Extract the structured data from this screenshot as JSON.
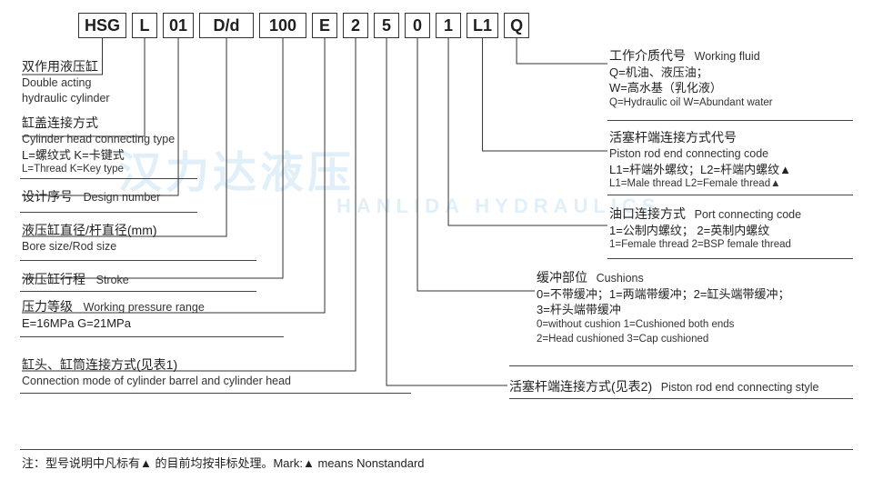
{
  "codes": [
    "HSG",
    "L",
    "01",
    "D/d",
    "100",
    "E",
    "2",
    "5",
    "0",
    "1",
    "L1",
    "Q"
  ],
  "left": [
    {
      "cn": "双作用液压缸",
      "en": "Double acting\nhydraulic cylinder"
    },
    {
      "cn": "缸盖连接方式",
      "en": "Cylinder head connecting type",
      "detail": "L=螺纹式  K=卡键式",
      "sm": "L=Thread K=Key type"
    },
    {
      "cn": "设计序号",
      "en": "Design number"
    },
    {
      "cn": "液压缸直径/杆直径(mm)",
      "en": "Bore size/Rod size"
    },
    {
      "cn": "液压缸行程",
      "en": "Stroke"
    },
    {
      "cn": "压力等级",
      "en": "Working pressure range",
      "detail": "E=16MPa    G=21MPa"
    },
    {
      "cn": "缸头、缸筒连接方式(见表1)",
      "en": "Connection mode of cylinder barrel and cylinder head"
    }
  ],
  "right": [
    {
      "cn": "工作介质代号",
      "en": "Working fluid",
      "detail": "Q=机油、液压油；\nW=高水基（乳化液）",
      "sm": "Q=Hydraulic oil   W=Abundant water"
    },
    {
      "cn": "活塞杆端连接方式代号",
      "en": "Piston rod end connecting code",
      "detail": "L1=杆端外螺纹；L2=杆端内螺纹▲",
      "sm": "L1=Male thread      L2=Female thread▲"
    },
    {
      "cn": "油口连接方式",
      "en": "Port connecting code",
      "detail": "1=公制内螺纹；   2=英制内螺纹",
      "sm": "1=Female thread   2=BSP female thread"
    },
    {
      "cn": "缓冲部位",
      "en": "Cushions",
      "detail": "0=不带缓冲；1=两端带缓冲；2=缸头端带缓冲；\n3=杆头端带缓冲",
      "sm": "0=without cushion    1=Cushioned both ends\n2=Head cushioned    3=Cap cushioned"
    },
    {
      "cn": "活塞杆端连接方式(见表2)",
      "en": "Piston rod end connecting style"
    }
  ],
  "footnote": "注：型号说明中凡标有▲ 的目前均按非标处理。Mark:▲ means Nonstandard",
  "watermark": "汉力达液压",
  "watermark_sub": "HANLIDA HYDRAULICS",
  "stroke": "#333333"
}
